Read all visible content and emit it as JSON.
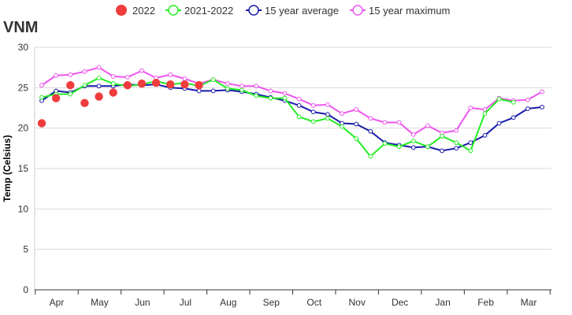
{
  "chart_data": {
    "type": "line",
    "title": "VNM",
    "ylabel": "Temp (Celsius)",
    "xlabel": "",
    "ylim": [
      0,
      30
    ],
    "yticks": [
      0,
      5,
      10,
      15,
      20,
      25,
      30
    ],
    "grid": true,
    "legend_position": "top",
    "month_labels": [
      "Apr",
      "May",
      "Jun",
      "Jul",
      "Aug",
      "Sep",
      "Oct",
      "Nov",
      "Dec",
      "Jan",
      "Feb",
      "Mar"
    ],
    "series": [
      {
        "name": "2022",
        "style": "dots",
        "color": "#f03c3c",
        "values": [
          20.6,
          23.7,
          25.3,
          23.1,
          23.9,
          24.4,
          25.3,
          25.5,
          25.6,
          25.4,
          25.4,
          25.3
        ]
      },
      {
        "name": "2021-2022",
        "style": "line",
        "color": "#22ee22",
        "values": [
          23.8,
          24.2,
          24.2,
          25.3,
          26.2,
          25.5,
          25.2,
          25.4,
          25.8,
          25.4,
          25.6,
          25.2,
          26.0,
          24.9,
          24.7,
          24.0,
          23.7,
          23.7,
          21.4,
          20.8,
          21.2,
          20.2,
          18.7,
          16.5,
          18.1,
          17.7,
          18.4,
          17.7,
          19.0,
          18.2,
          17.2,
          21.8,
          23.6,
          23.2
        ]
      },
      {
        "name": "15 year average",
        "style": "line",
        "color": "#1a1aaa",
        "values": [
          23.4,
          24.6,
          24.4,
          25.2,
          25.2,
          25.2,
          25.4,
          25.3,
          25.4,
          25.0,
          24.9,
          24.6,
          24.6,
          24.7,
          24.5,
          24.2,
          23.8,
          23.4,
          22.8,
          22.0,
          21.7,
          20.6,
          20.5,
          19.6,
          18.2,
          17.9,
          17.6,
          17.7,
          17.2,
          17.5,
          18.2,
          19.1,
          20.6,
          21.3,
          22.4,
          22.6
        ]
      },
      {
        "name": "15 year maximum",
        "style": "line",
        "color": "#ee55ee",
        "values": [
          25.3,
          26.5,
          26.6,
          27.0,
          27.5,
          26.4,
          26.3,
          27.1,
          26.2,
          26.6,
          26.1,
          25.5,
          26.0,
          25.5,
          25.2,
          25.2,
          24.6,
          24.3,
          23.6,
          22.8,
          22.9,
          21.8,
          22.3,
          21.2,
          20.7,
          20.7,
          19.2,
          20.3,
          19.4,
          19.7,
          22.5,
          22.3,
          23.7,
          23.4,
          23.5,
          24.5
        ]
      }
    ]
  }
}
